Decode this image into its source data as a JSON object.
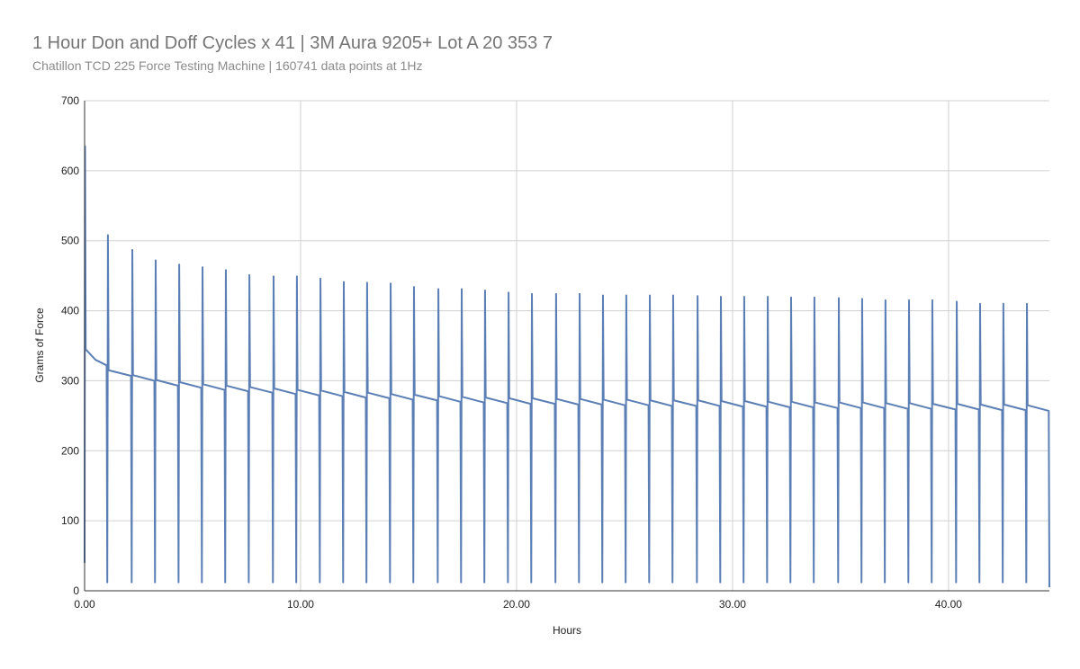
{
  "chart_data": {
    "type": "line",
    "title": "1 Hour Don and Doff Cycles x 41  |  3M Aura 9205+ Lot A 20 353 7",
    "subtitle": "Chatillon TCD 225 Force Testing Machine | 160741 data points at 1Hz",
    "xlabel": "Hours",
    "ylabel": "Grams of Force",
    "color": "#5b7fb5",
    "grid": true,
    "xlim": [
      0,
      44.67
    ],
    "ylim": [
      0,
      700
    ],
    "xticks": [
      {
        "value": 0,
        "label": "0.00"
      },
      {
        "value": 10,
        "label": "10.00"
      },
      {
        "value": 20,
        "label": "20.00"
      },
      {
        "value": 30,
        "label": "30.00"
      },
      {
        "value": 40,
        "label": "40.00"
      }
    ],
    "yticks": [
      0,
      100,
      200,
      300,
      400,
      500,
      600,
      700
    ],
    "x": [
      0,
      0.02,
      0.05,
      0.5,
      1.02,
      1.05,
      1.08,
      1.11,
      2.15,
      2.18,
      2.21,
      2.24,
      3.23,
      3.26,
      3.29,
      3.32,
      4.32,
      4.35,
      4.38,
      4.41,
      5.4,
      5.43,
      5.46,
      5.49,
      6.48,
      6.51,
      6.54,
      6.57,
      7.57,
      7.6,
      7.63,
      7.66,
      8.69,
      8.72,
      8.75,
      8.78,
      9.77,
      9.8,
      9.83,
      9.86,
      10.86,
      10.89,
      10.92,
      10.95,
      11.94,
      11.97,
      12.0,
      12.03,
      13.02,
      13.05,
      13.08,
      13.11,
      14.11,
      14.14,
      14.17,
      14.2,
      15.19,
      15.22,
      15.25,
      15.28,
      16.32,
      16.35,
      16.38,
      16.41,
      17.4,
      17.43,
      17.46,
      17.49,
      18.48,
      18.51,
      18.54,
      18.57,
      19.57,
      19.6,
      19.63,
      19.66,
      20.65,
      20.68,
      20.71,
      20.74,
      21.77,
      21.8,
      21.83,
      21.86,
      22.86,
      22.89,
      22.92,
      22.95,
      23.94,
      23.97,
      24.0,
      24.03,
      25.02,
      25.05,
      25.08,
      25.11,
      26.11,
      26.14,
      26.17,
      26.2,
      27.19,
      27.22,
      27.25,
      27.28,
      28.32,
      28.35,
      28.38,
      28.41,
      29.4,
      29.43,
      29.46,
      29.49,
      30.48,
      30.51,
      30.54,
      30.57,
      31.57,
      31.6,
      31.63,
      31.66,
      32.65,
      32.68,
      32.71,
      32.74,
      33.73,
      33.76,
      33.79,
      33.82,
      34.86,
      34.89,
      34.92,
      34.95,
      35.94,
      35.97,
      36.0,
      36.03,
      37.02,
      37.05,
      37.08,
      37.11,
      38.11,
      38.14,
      38.17,
      38.2,
      39.19,
      39.22,
      39.25,
      39.28,
      40.32,
      40.35,
      40.38,
      40.41,
      41.4,
      41.43,
      41.46,
      41.49,
      42.48,
      42.51,
      42.54,
      42.57,
      43.57,
      43.6,
      43.63,
      43.66,
      44.64,
      44.67
    ],
    "values": [
      40,
      635,
      345,
      330,
      322,
      12,
      508,
      315,
      307,
      12,
      487,
      308,
      300,
      12,
      472,
      301,
      293,
      12,
      466,
      298,
      290,
      12,
      462,
      295,
      287,
      12,
      458,
      293,
      285,
      12,
      451,
      291,
      283,
      12,
      449,
      289,
      281,
      12,
      449,
      287,
      279,
      12,
      446,
      286,
      278,
      12,
      441,
      284,
      276,
      12,
      440,
      283,
      275,
      12,
      439,
      281,
      273,
      12,
      434,
      280,
      272,
      12,
      431,
      278,
      270,
      12,
      431,
      277,
      269,
      12,
      429,
      276,
      268,
      12,
      426,
      275,
      267,
      12,
      424,
      275,
      267,
      12,
      424,
      274,
      266,
      12,
      424,
      274,
      266,
      12,
      422,
      273,
      265,
      12,
      422,
      273,
      265,
      12,
      422,
      272,
      264,
      12,
      422,
      272,
      264,
      12,
      421,
      272,
      264,
      12,
      420,
      271,
      263,
      12,
      420,
      271,
      263,
      12,
      420,
      270,
      262,
      12,
      419,
      270,
      262,
      12,
      419,
      269,
      261,
      12,
      418,
      269,
      261,
      12,
      417,
      269,
      261,
      12,
      415,
      268,
      260,
      12,
      415,
      268,
      260,
      12,
      415,
      267,
      259,
      12,
      413,
      267,
      259,
      12,
      410,
      266,
      258,
      12,
      410,
      266,
      258,
      12,
      410,
      265,
      257,
      5
    ]
  }
}
